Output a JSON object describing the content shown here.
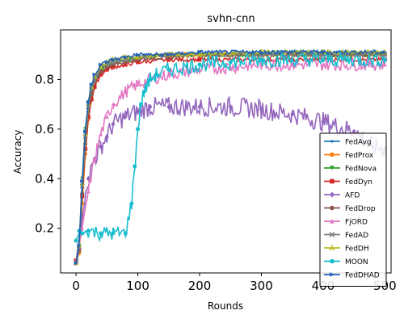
{
  "chart_data": {
    "type": "line",
    "title": "svhn-cnn",
    "xlabel": "Rounds",
    "ylabel": "Accuracy",
    "xlim": [
      -25,
      510
    ],
    "ylim": [
      0.02,
      1.0
    ],
    "xticks": [
      0,
      100,
      200,
      300,
      400,
      500
    ],
    "yticks": [
      0.2,
      0.4,
      0.6,
      0.8
    ],
    "grid": false,
    "legend_position": "lower-right",
    "series": [
      {
        "name": "FedAvg",
        "color": "#1f77b4",
        "marker": "dot",
        "x": [
          0,
          5,
          10,
          15,
          20,
          25,
          30,
          40,
          50,
          60,
          80,
          100,
          150,
          200,
          300,
          400,
          500
        ],
        "y": [
          0.06,
          0.12,
          0.35,
          0.55,
          0.68,
          0.75,
          0.79,
          0.84,
          0.86,
          0.87,
          0.88,
          0.89,
          0.9,
          0.9,
          0.91,
          0.91,
          0.91
        ]
      },
      {
        "name": "FedProx",
        "color": "#ff7f0e",
        "marker": "circle",
        "x": [
          0,
          5,
          10,
          15,
          20,
          25,
          30,
          40,
          50,
          60,
          80,
          100,
          150,
          200,
          300,
          400,
          500
        ],
        "y": [
          0.06,
          0.1,
          0.3,
          0.5,
          0.64,
          0.72,
          0.77,
          0.83,
          0.85,
          0.86,
          0.88,
          0.89,
          0.9,
          0.9,
          0.9,
          0.9,
          0.9
        ]
      },
      {
        "name": "FedNova",
        "color": "#2ca02c",
        "marker": "triangle-down",
        "x": [
          0,
          5,
          10,
          15,
          20,
          25,
          30,
          40,
          50,
          60,
          80,
          100,
          150,
          200,
          300,
          400,
          500
        ],
        "y": [
          0.06,
          0.13,
          0.4,
          0.6,
          0.7,
          0.76,
          0.8,
          0.84,
          0.86,
          0.87,
          0.88,
          0.89,
          0.9,
          0.9,
          0.9,
          0.9,
          0.9
        ]
      },
      {
        "name": "FedDyn",
        "color": "#d62728",
        "marker": "square",
        "x": [
          0,
          5,
          10,
          15,
          20,
          25,
          30,
          40,
          50,
          60,
          80,
          100,
          150,
          200,
          300,
          400,
          500
        ],
        "y": [
          0.07,
          0.12,
          0.33,
          0.52,
          0.65,
          0.72,
          0.77,
          0.82,
          0.84,
          0.85,
          0.86,
          0.87,
          0.88,
          0.88,
          0.88,
          0.88,
          0.88
        ]
      },
      {
        "name": "AFD",
        "color": "#9467bd",
        "marker": "diamond",
        "x": [
          0,
          10,
          20,
          30,
          40,
          50,
          60,
          80,
          100,
          120,
          150,
          200,
          250,
          300,
          350,
          400,
          450,
          480,
          500
        ],
        "y": [
          0.06,
          0.25,
          0.4,
          0.48,
          0.53,
          0.57,
          0.62,
          0.65,
          0.67,
          0.69,
          0.69,
          0.69,
          0.69,
          0.68,
          0.66,
          0.63,
          0.59,
          0.53,
          0.52
        ]
      },
      {
        "name": "FedDrop",
        "color": "#8c564b",
        "marker": "hexagon",
        "x": [
          0,
          5,
          10,
          15,
          20,
          25,
          30,
          40,
          50,
          60,
          80,
          100,
          150,
          200,
          300,
          400,
          500
        ],
        "y": [
          0.06,
          0.11,
          0.34,
          0.54,
          0.67,
          0.74,
          0.79,
          0.83,
          0.85,
          0.86,
          0.87,
          0.88,
          0.89,
          0.9,
          0.9,
          0.9,
          0.9
        ]
      },
      {
        "name": "FjORD",
        "color": "#e377c2",
        "marker": "triangle-up",
        "x": [
          0,
          10,
          20,
          30,
          40,
          50,
          60,
          80,
          100,
          120,
          150,
          200,
          250,
          300,
          350,
          400,
          450,
          500
        ],
        "y": [
          0.06,
          0.2,
          0.35,
          0.48,
          0.58,
          0.65,
          0.7,
          0.75,
          0.78,
          0.8,
          0.82,
          0.84,
          0.85,
          0.86,
          0.86,
          0.86,
          0.86,
          0.86
        ]
      },
      {
        "name": "FedAD",
        "color": "#7f7f7f",
        "marker": "x",
        "x": [
          0,
          5,
          10,
          15,
          20,
          25,
          30,
          40,
          50,
          60,
          80,
          100,
          150,
          200,
          300,
          400,
          500
        ],
        "y": [
          0.06,
          0.12,
          0.37,
          0.57,
          0.69,
          0.76,
          0.8,
          0.85,
          0.86,
          0.87,
          0.88,
          0.89,
          0.9,
          0.9,
          0.9,
          0.9,
          0.9
        ]
      },
      {
        "name": "FedDH",
        "color": "#bcbd22",
        "marker": "tri",
        "x": [
          0,
          5,
          10,
          15,
          20,
          25,
          30,
          40,
          50,
          60,
          80,
          100,
          150,
          200,
          300,
          400,
          500
        ],
        "y": [
          0.06,
          0.13,
          0.38,
          0.58,
          0.7,
          0.77,
          0.81,
          0.85,
          0.87,
          0.88,
          0.89,
          0.89,
          0.9,
          0.9,
          0.91,
          0.91,
          0.91
        ]
      },
      {
        "name": "MOON",
        "color": "#17becf",
        "marker": "circle",
        "x": [
          0,
          5,
          10,
          20,
          40,
          60,
          80,
          90,
          95,
          100,
          105,
          110,
          120,
          130,
          150,
          200,
          250,
          300,
          400,
          500
        ],
        "y": [
          0.15,
          0.19,
          0.18,
          0.19,
          0.18,
          0.18,
          0.18,
          0.3,
          0.45,
          0.6,
          0.7,
          0.75,
          0.8,
          0.82,
          0.84,
          0.86,
          0.87,
          0.88,
          0.88,
          0.88
        ]
      },
      {
        "name": "FedDHAD",
        "color": "#1f5fb4",
        "marker": "triangle-right",
        "x": [
          0,
          5,
          10,
          15,
          20,
          25,
          30,
          40,
          50,
          60,
          80,
          100,
          150,
          200,
          300,
          400,
          500
        ],
        "y": [
          0.06,
          0.13,
          0.39,
          0.59,
          0.71,
          0.78,
          0.82,
          0.86,
          0.87,
          0.88,
          0.89,
          0.9,
          0.9,
          0.91,
          0.91,
          0.91,
          0.91
        ]
      }
    ]
  }
}
